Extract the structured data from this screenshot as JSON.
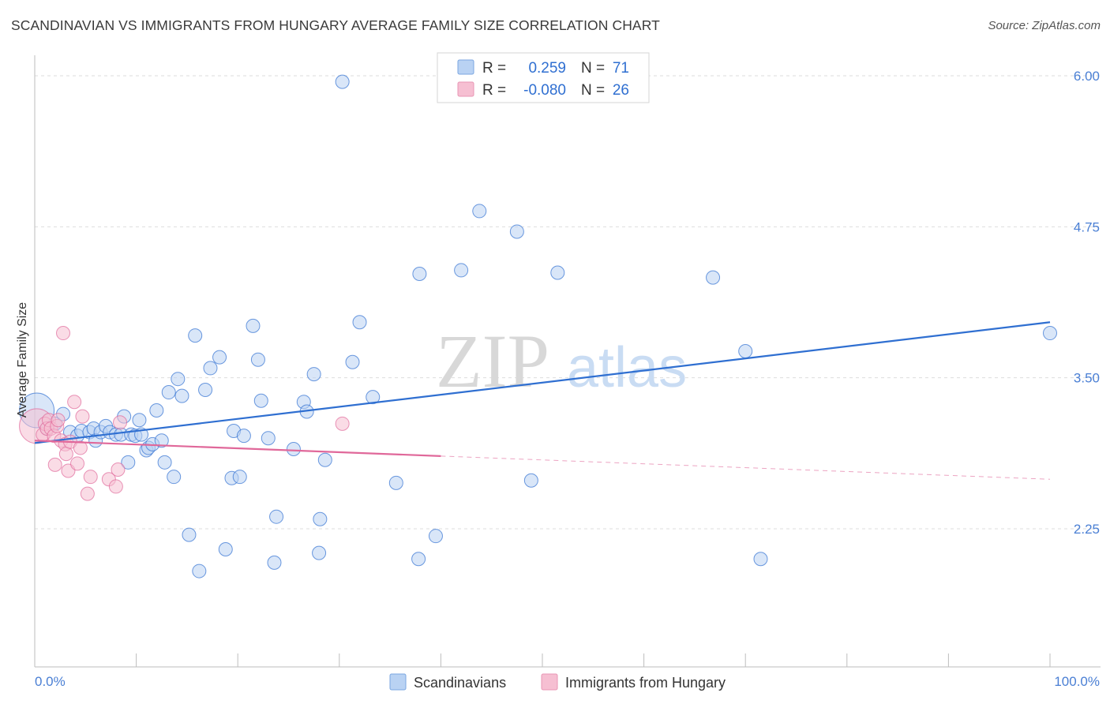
{
  "title": "SCANDINAVIAN VS IMMIGRANTS FROM HUNGARY AVERAGE FAMILY SIZE CORRELATION CHART",
  "source": "Source: ZipAtlas.com",
  "watermark": {
    "zip": "ZIP",
    "atlas": "atlas"
  },
  "colors": {
    "blue": "#2f6fd1",
    "blue_fill": "#b9d2f3",
    "pink": "#e0689a",
    "pink_fill": "#f6bfd2",
    "grid": "#dddddd",
    "tick_text": "#4a7fd4"
  },
  "legend_box": {
    "rows": [
      {
        "r_label": "R =",
        "r_value": "0.259",
        "n_label": "N =",
        "n_value": "71",
        "color": "#b9d2f3",
        "border": "#7aa6e0"
      },
      {
        "r_label": "R =",
        "r_value": "-0.080",
        "n_label": "N =",
        "n_value": "26",
        "color": "#f6bfd2",
        "border": "#e896b4"
      }
    ]
  },
  "chart_data": {
    "type": "scatter",
    "title": "SCANDINAVIAN VS IMMIGRANTS FROM HUNGARY AVERAGE FAMILY SIZE CORRELATION CHART",
    "xlabel": "",
    "ylabel": "Average Family Size",
    "xlim": [
      0,
      100
    ],
    "ylim": [
      1.25,
      6.2
    ],
    "x_tick_labels": [
      "0.0%",
      "100.0%"
    ],
    "y_ticks": [
      2.25,
      3.5,
      4.75,
      6.0
    ],
    "y_tick_labels": [
      "2.25",
      "3.50",
      "4.75",
      "6.00"
    ],
    "grid": true,
    "legend_position": "bottom",
    "series": [
      {
        "name": "Scandinavians",
        "color": "#2f6fd1",
        "fill": "#b9d2f3",
        "trend": {
          "x0": 0,
          "y0": 2.96,
          "x1": 100,
          "y1": 3.96,
          "solid_until": 100
        },
        "points": [
          {
            "x": 0.2,
            "y": 3.23,
            "big": true
          },
          {
            "x": 1.2,
            "y": 3.08
          },
          {
            "x": 2.0,
            "y": 3.12
          },
          {
            "x": 2.8,
            "y": 3.2
          },
          {
            "x": 3.5,
            "y": 3.05
          },
          {
            "x": 4.2,
            "y": 3.02
          },
          {
            "x": 4.6,
            "y": 3.06
          },
          {
            "x": 5.4,
            "y": 3.05
          },
          {
            "x": 5.8,
            "y": 3.08
          },
          {
            "x": 6.0,
            "y": 2.98
          },
          {
            "x": 6.5,
            "y": 3.05
          },
          {
            "x": 7.0,
            "y": 3.1
          },
          {
            "x": 7.4,
            "y": 3.05
          },
          {
            "x": 8.0,
            "y": 3.03
          },
          {
            "x": 8.5,
            "y": 3.03
          },
          {
            "x": 8.8,
            "y": 3.18
          },
          {
            "x": 9.2,
            "y": 2.8
          },
          {
            "x": 9.5,
            "y": 3.03
          },
          {
            "x": 9.9,
            "y": 3.02
          },
          {
            "x": 10.3,
            "y": 3.15
          },
          {
            "x": 10.5,
            "y": 3.03
          },
          {
            "x": 11.0,
            "y": 2.9
          },
          {
            "x": 11.2,
            "y": 2.92
          },
          {
            "x": 11.6,
            "y": 2.95
          },
          {
            "x": 12.0,
            "y": 3.23
          },
          {
            "x": 12.5,
            "y": 2.98
          },
          {
            "x": 12.8,
            "y": 2.8
          },
          {
            "x": 13.2,
            "y": 3.38
          },
          {
            "x": 13.7,
            "y": 2.68
          },
          {
            "x": 14.1,
            "y": 3.49
          },
          {
            "x": 14.5,
            "y": 3.35
          },
          {
            "x": 15.2,
            "y": 2.2
          },
          {
            "x": 15.8,
            "y": 3.85
          },
          {
            "x": 16.2,
            "y": 1.9
          },
          {
            "x": 16.8,
            "y": 3.4
          },
          {
            "x": 17.3,
            "y": 3.58
          },
          {
            "x": 18.2,
            "y": 3.67
          },
          {
            "x": 18.8,
            "y": 2.08
          },
          {
            "x": 19.4,
            "y": 2.67
          },
          {
            "x": 19.6,
            "y": 3.06
          },
          {
            "x": 20.2,
            "y": 2.68
          },
          {
            "x": 20.6,
            "y": 3.02
          },
          {
            "x": 21.5,
            "y": 3.93
          },
          {
            "x": 22.0,
            "y": 3.65
          },
          {
            "x": 22.3,
            "y": 3.31
          },
          {
            "x": 23.0,
            "y": 3.0
          },
          {
            "x": 23.8,
            "y": 2.35
          },
          {
            "x": 23.6,
            "y": 1.97
          },
          {
            "x": 25.5,
            "y": 2.91
          },
          {
            "x": 26.5,
            "y": 3.3
          },
          {
            "x": 26.8,
            "y": 3.22
          },
          {
            "x": 27.5,
            "y": 3.53
          },
          {
            "x": 28.0,
            "y": 2.05
          },
          {
            "x": 28.1,
            "y": 2.33
          },
          {
            "x": 28.6,
            "y": 2.82
          },
          {
            "x": 30.3,
            "y": 5.95
          },
          {
            "x": 31.3,
            "y": 3.63
          },
          {
            "x": 32.0,
            "y": 3.96
          },
          {
            "x": 33.3,
            "y": 3.34
          },
          {
            "x": 35.6,
            "y": 2.63
          },
          {
            "x": 37.9,
            "y": 4.36
          },
          {
            "x": 37.8,
            "y": 2.0
          },
          {
            "x": 39.5,
            "y": 2.19
          },
          {
            "x": 42.0,
            "y": 4.39
          },
          {
            "x": 43.8,
            "y": 4.88
          },
          {
            "x": 47.5,
            "y": 4.71
          },
          {
            "x": 48.9,
            "y": 2.65
          },
          {
            "x": 51.5,
            "y": 4.37
          },
          {
            "x": 66.8,
            "y": 4.33
          },
          {
            "x": 70.0,
            "y": 3.72
          },
          {
            "x": 71.5,
            "y": 2.0
          },
          {
            "x": 100.0,
            "y": 3.87
          }
        ]
      },
      {
        "name": "Immigrants from Hungary",
        "color": "#e0689a",
        "fill": "#f6bfd2",
        "trend": {
          "x0": 0,
          "y0": 2.98,
          "x1": 100,
          "y1": 2.66,
          "solid_until": 40
        },
        "points": [
          {
            "x": 0.2,
            "y": 3.1,
            "big": true
          },
          {
            "x": 0.8,
            "y": 3.03
          },
          {
            "x": 1.0,
            "y": 3.12
          },
          {
            "x": 1.2,
            "y": 3.08
          },
          {
            "x": 1.4,
            "y": 3.15
          },
          {
            "x": 1.6,
            "y": 3.08
          },
          {
            "x": 1.9,
            "y": 3.02
          },
          {
            "x": 2.0,
            "y": 2.78
          },
          {
            "x": 2.2,
            "y": 3.1
          },
          {
            "x": 2.3,
            "y": 3.15
          },
          {
            "x": 2.6,
            "y": 2.98
          },
          {
            "x": 2.8,
            "y": 3.87
          },
          {
            "x": 3.0,
            "y": 2.95
          },
          {
            "x": 3.1,
            "y": 2.87
          },
          {
            "x": 3.3,
            "y": 2.73
          },
          {
            "x": 3.5,
            "y": 2.97
          },
          {
            "x": 3.9,
            "y": 3.3
          },
          {
            "x": 4.2,
            "y": 2.79
          },
          {
            "x": 4.5,
            "y": 2.92
          },
          {
            "x": 4.7,
            "y": 3.18
          },
          {
            "x": 5.2,
            "y": 2.54
          },
          {
            "x": 5.5,
            "y": 2.68
          },
          {
            "x": 7.3,
            "y": 2.66
          },
          {
            "x": 8.2,
            "y": 2.74
          },
          {
            "x": 8.4,
            "y": 3.13
          },
          {
            "x": 8.0,
            "y": 2.6
          },
          {
            "x": 30.3,
            "y": 3.12
          }
        ]
      }
    ]
  }
}
